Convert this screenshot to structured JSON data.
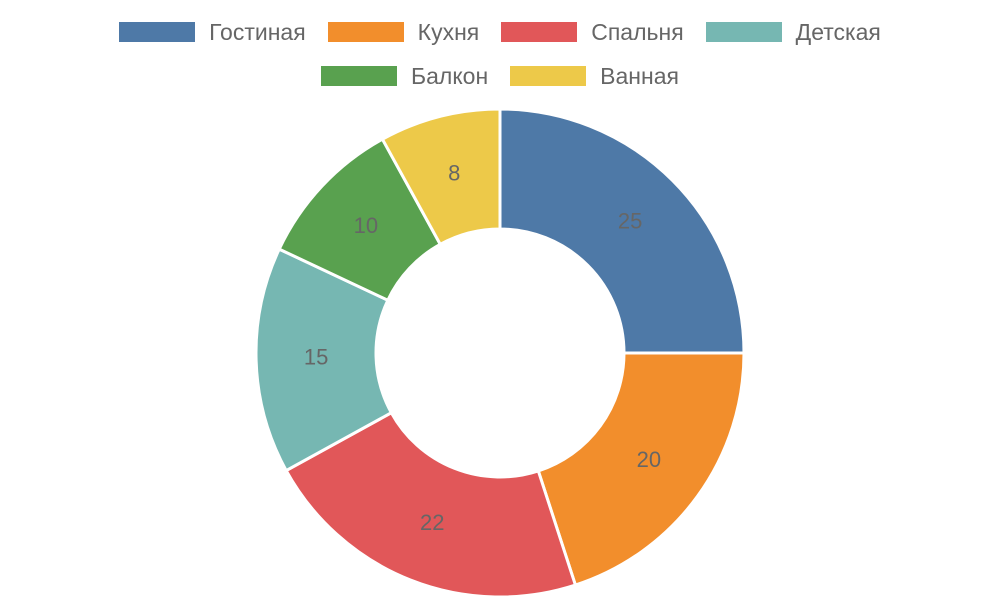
{
  "chart_data": {
    "type": "doughnut",
    "categories": [
      "Гостиная",
      "Кухня",
      "Спальня",
      "Детская",
      "Балкон",
      "Ванная"
    ],
    "values": [
      25,
      20,
      22,
      15,
      10,
      8
    ],
    "colors": [
      "#4e79a7",
      "#f28e2c",
      "#e15759",
      "#76b7b2",
      "#59a14f",
      "#edc949"
    ]
  }
}
